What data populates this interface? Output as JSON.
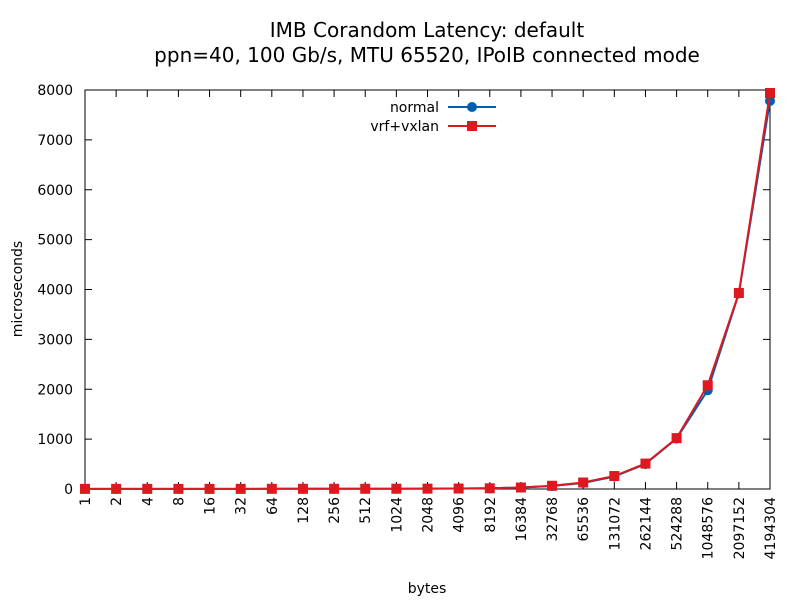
{
  "chart_data": {
    "type": "line",
    "title": "IMB Corandom Latency: default",
    "subtitle": "ppn=40, 100 Gb/s, MTU 65520, IPoIB connected mode",
    "xlabel": "bytes",
    "ylabel": "microseconds",
    "ylim": [
      0,
      8000
    ],
    "yticks": [
      0,
      1000,
      2000,
      3000,
      4000,
      5000,
      6000,
      7000,
      8000
    ],
    "categories": [
      "1",
      "2",
      "4",
      "8",
      "16",
      "32",
      "64",
      "128",
      "256",
      "512",
      "1024",
      "2048",
      "4096",
      "8192",
      "16384",
      "32768",
      "65536",
      "131072",
      "262144",
      "524288",
      "1048576",
      "2097152",
      "4194304"
    ],
    "series": [
      {
        "name": "normal",
        "color": "#0060ad",
        "marker": "circle",
        "values": [
          3,
          3,
          3,
          3,
          3,
          3,
          4,
          4,
          4,
          5,
          6,
          7,
          9,
          14,
          30,
          60,
          120,
          250,
          500,
          1010,
          1980,
          3920,
          7780
        ]
      },
      {
        "name": "vrf+vxlan",
        "color": "#dd181f",
        "marker": "square",
        "values": [
          3,
          3,
          3,
          3,
          3,
          3,
          4,
          4,
          4,
          5,
          6,
          7,
          9,
          14,
          30,
          65,
          130,
          260,
          510,
          1020,
          2080,
          3930,
          7940
        ]
      }
    ],
    "legend": "top-center",
    "grid": false
  }
}
